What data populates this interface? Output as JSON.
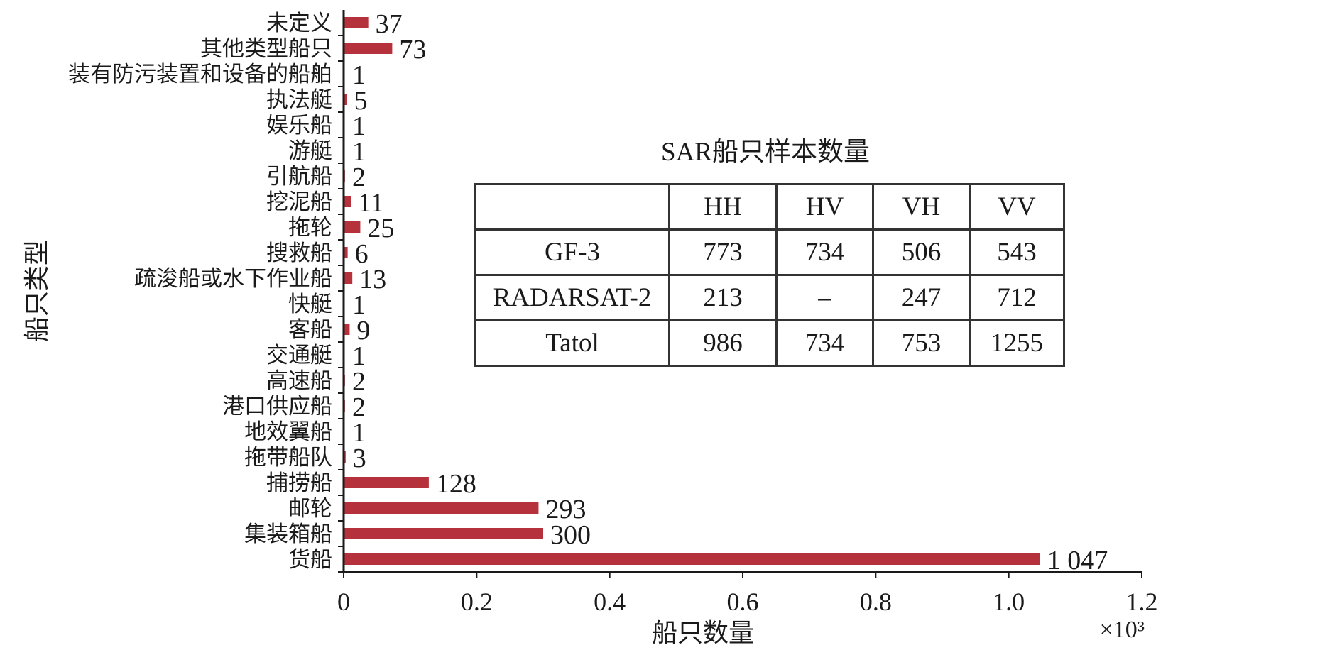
{
  "chart_data": {
    "type": "bar",
    "orientation": "horizontal",
    "title": "",
    "xlabel": "船只数量",
    "ylabel": "船只类型",
    "x_multiplier_label": "×10³",
    "xlim": [
      0,
      1.2
    ],
    "x_ticks": [
      "0",
      "0.2",
      "0.4",
      "0.6",
      "0.8",
      "1.0",
      "1.2"
    ],
    "x_tick_values": [
      0,
      0.2,
      0.4,
      0.6,
      0.8,
      1.0,
      1.2
    ],
    "bar_color": "#b5323c",
    "categories": [
      "未定义",
      "其他类型船只",
      "装有防污装置和设备的船舶",
      "执法艇",
      "娱乐船",
      "游艇",
      "引航船",
      "挖泥船",
      "拖轮",
      "搜救船",
      "疏浚船或水下作业船",
      "快艇",
      "客船",
      "交通艇",
      "高速船",
      "港口供应船",
      "地效翼船",
      "拖带船队",
      "捕捞船",
      "邮轮",
      "集装箱船",
      "货船"
    ],
    "values": [
      37,
      73,
      1,
      5,
      1,
      1,
      2,
      11,
      25,
      6,
      13,
      1,
      9,
      1,
      2,
      2,
      1,
      3,
      128,
      293,
      300,
      1047
    ],
    "value_labels": [
      "37",
      "73",
      "1",
      "5",
      "1",
      "1",
      "2",
      "11",
      "25",
      "6",
      "13",
      "1",
      "9",
      "1",
      "2",
      "2",
      "1",
      "3",
      "128",
      "293",
      "300",
      "1 047"
    ],
    "legend": null,
    "grid": false
  },
  "table": {
    "title": "SAR船只样本数量",
    "headers": [
      "",
      "HH",
      "HV",
      "VH",
      "VV"
    ],
    "rows": [
      [
        "GF-3",
        "773",
        "734",
        "506",
        "543"
      ],
      [
        "RADARSAT-2",
        "213",
        "–",
        "247",
        "712"
      ],
      [
        "Tatol",
        "986",
        "734",
        "753",
        "1255"
      ]
    ]
  }
}
